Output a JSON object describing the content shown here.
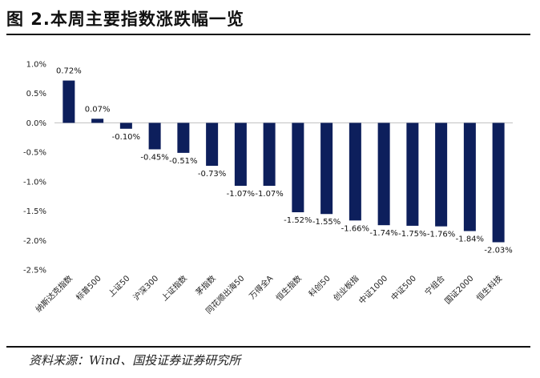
{
  "figure": {
    "title": "图 2.本周主要指数涨跌幅一览",
    "source": "资料来源：Wind、国投证券证券研究所"
  },
  "chart_data": {
    "type": "bar",
    "title": "",
    "xlabel": "",
    "ylabel": "",
    "ylim": [
      -2.5,
      1.0
    ],
    "yticks": [
      1.0,
      0.5,
      0.0,
      -0.5,
      -1.0,
      -1.5,
      -2.0,
      -2.5
    ],
    "ytick_labels": [
      "1.0%",
      "0.5%",
      "0.0%",
      "-0.5%",
      "-1.0%",
      "-1.5%",
      "-2.0%",
      "-2.5%"
    ],
    "grid": false,
    "legend": "none",
    "bar_color": "#0d1f5c",
    "categories": [
      "纳斯达克指数",
      "标普500",
      "上证50",
      "沪深300",
      "上证指数",
      "茅指数",
      "同花顺出海50",
      "万得全A",
      "恒生指数",
      "科创50",
      "创业板指",
      "中证1000",
      "中证500",
      "宁组合",
      "国证2000",
      "恒生科技"
    ],
    "values": [
      0.72,
      0.07,
      -0.1,
      -0.45,
      -0.51,
      -0.73,
      -1.07,
      -1.07,
      -1.52,
      -1.55,
      -1.66,
      -1.74,
      -1.75,
      -1.76,
      -1.84,
      -2.03
    ],
    "value_labels": [
      "0.72%",
      "0.07%",
      "-0.10%",
      "-0.45%",
      "-0.51%",
      "-0.73%",
      "-1.07%",
      "-1.07%",
      "-1.52%",
      "-1.55%",
      "-1.66%",
      "-1.74%",
      "-1.75%",
      "-1.76%",
      "-1.84%",
      "-2.03%"
    ]
  }
}
